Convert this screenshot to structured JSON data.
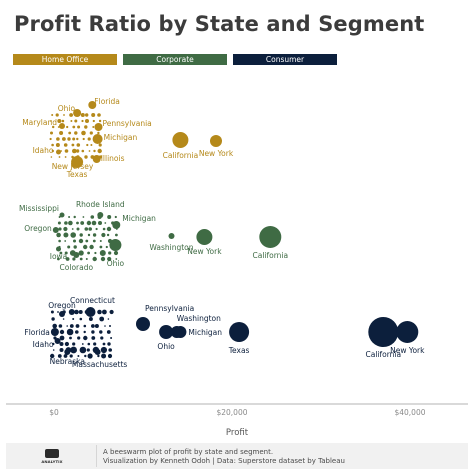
{
  "title": "Profit Ratio by State and Segment",
  "legend": [
    {
      "label": "Home Office",
      "color": "#b5891a"
    },
    {
      "label": "Corporate",
      "color": "#3f6b44"
    },
    {
      "label": "Consumer",
      "color": "#0c1f3c"
    }
  ],
  "axis_ticks": [
    "$0",
    "$20,000",
    "$40,000"
  ],
  "axis_title": "Profit",
  "footer": {
    "logo_text": "ANALYTIX",
    "line1": "A beeswarm plot of profit by state and segment.",
    "line2": "Visualization by Kenneth Odoh | Data: Superstore dataset by Tableau"
  },
  "chart_data": {
    "type": "scatter",
    "title": "Profit Ratio by State and Segment",
    "xlabel": "Profit",
    "ylabel": "",
    "xlim": [
      -3000,
      45000
    ],
    "x_ticks": [
      0,
      20000,
      40000
    ],
    "legend_position": "top",
    "series": [
      {
        "name": "Home Office",
        "color": "#b5891a",
        "labeled_points": [
          {
            "label": "Florida",
            "x": 4300
          },
          {
            "label": "Ohio",
            "x": 2600
          },
          {
            "label": "Maryland",
            "x": 900
          },
          {
            "label": "Pennsylvania",
            "x": 5000
          },
          {
            "label": "Michigan",
            "x": 4900
          },
          {
            "label": "Idaho",
            "x": 500
          },
          {
            "label": "Illinois",
            "x": 4800
          },
          {
            "label": "New Jersey",
            "x": 2300
          },
          {
            "label": "Texas",
            "x": 2600
          },
          {
            "label": "California",
            "x": 14200
          },
          {
            "label": "New York",
            "x": 18200
          }
        ]
      },
      {
        "name": "Corporate",
        "color": "#3f6b44",
        "labeled_points": [
          {
            "label": "Mississippi",
            "x": 900
          },
          {
            "label": "Rhode Island",
            "x": 5200
          },
          {
            "label": "Michigan",
            "x": 7000
          },
          {
            "label": "Oregon",
            "x": 200
          },
          {
            "label": "Washington",
            "x": 13200
          },
          {
            "label": "New York",
            "x": 16900
          },
          {
            "label": "California",
            "x": 24300
          },
          {
            "label": "Iowa",
            "x": 500
          },
          {
            "label": "Ohio",
            "x": 6900
          },
          {
            "label": "Colorado",
            "x": 2500
          }
        ]
      },
      {
        "name": "Consumer",
        "color": "#0c1f3c",
        "labeled_points": [
          {
            "label": "Oregon",
            "x": 900
          },
          {
            "label": "Connecticut",
            "x": 4100
          },
          {
            "label": "Pennsylvania",
            "x": 10000
          },
          {
            "label": "Washington",
            "x": 13800
          },
          {
            "label": "Florida",
            "x": 100
          },
          {
            "label": "Michigan",
            "x": 14200
          },
          {
            "label": "Idaho",
            "x": 400
          },
          {
            "label": "Ohio",
            "x": 12600
          },
          {
            "label": "Texas",
            "x": 20800
          },
          {
            "label": "Nebraska",
            "x": 1500
          },
          {
            "label": "Massachusetts",
            "x": 4900
          },
          {
            "label": "California",
            "x": 37000
          },
          {
            "label": "New York",
            "x": 39700
          }
        ]
      }
    ]
  }
}
